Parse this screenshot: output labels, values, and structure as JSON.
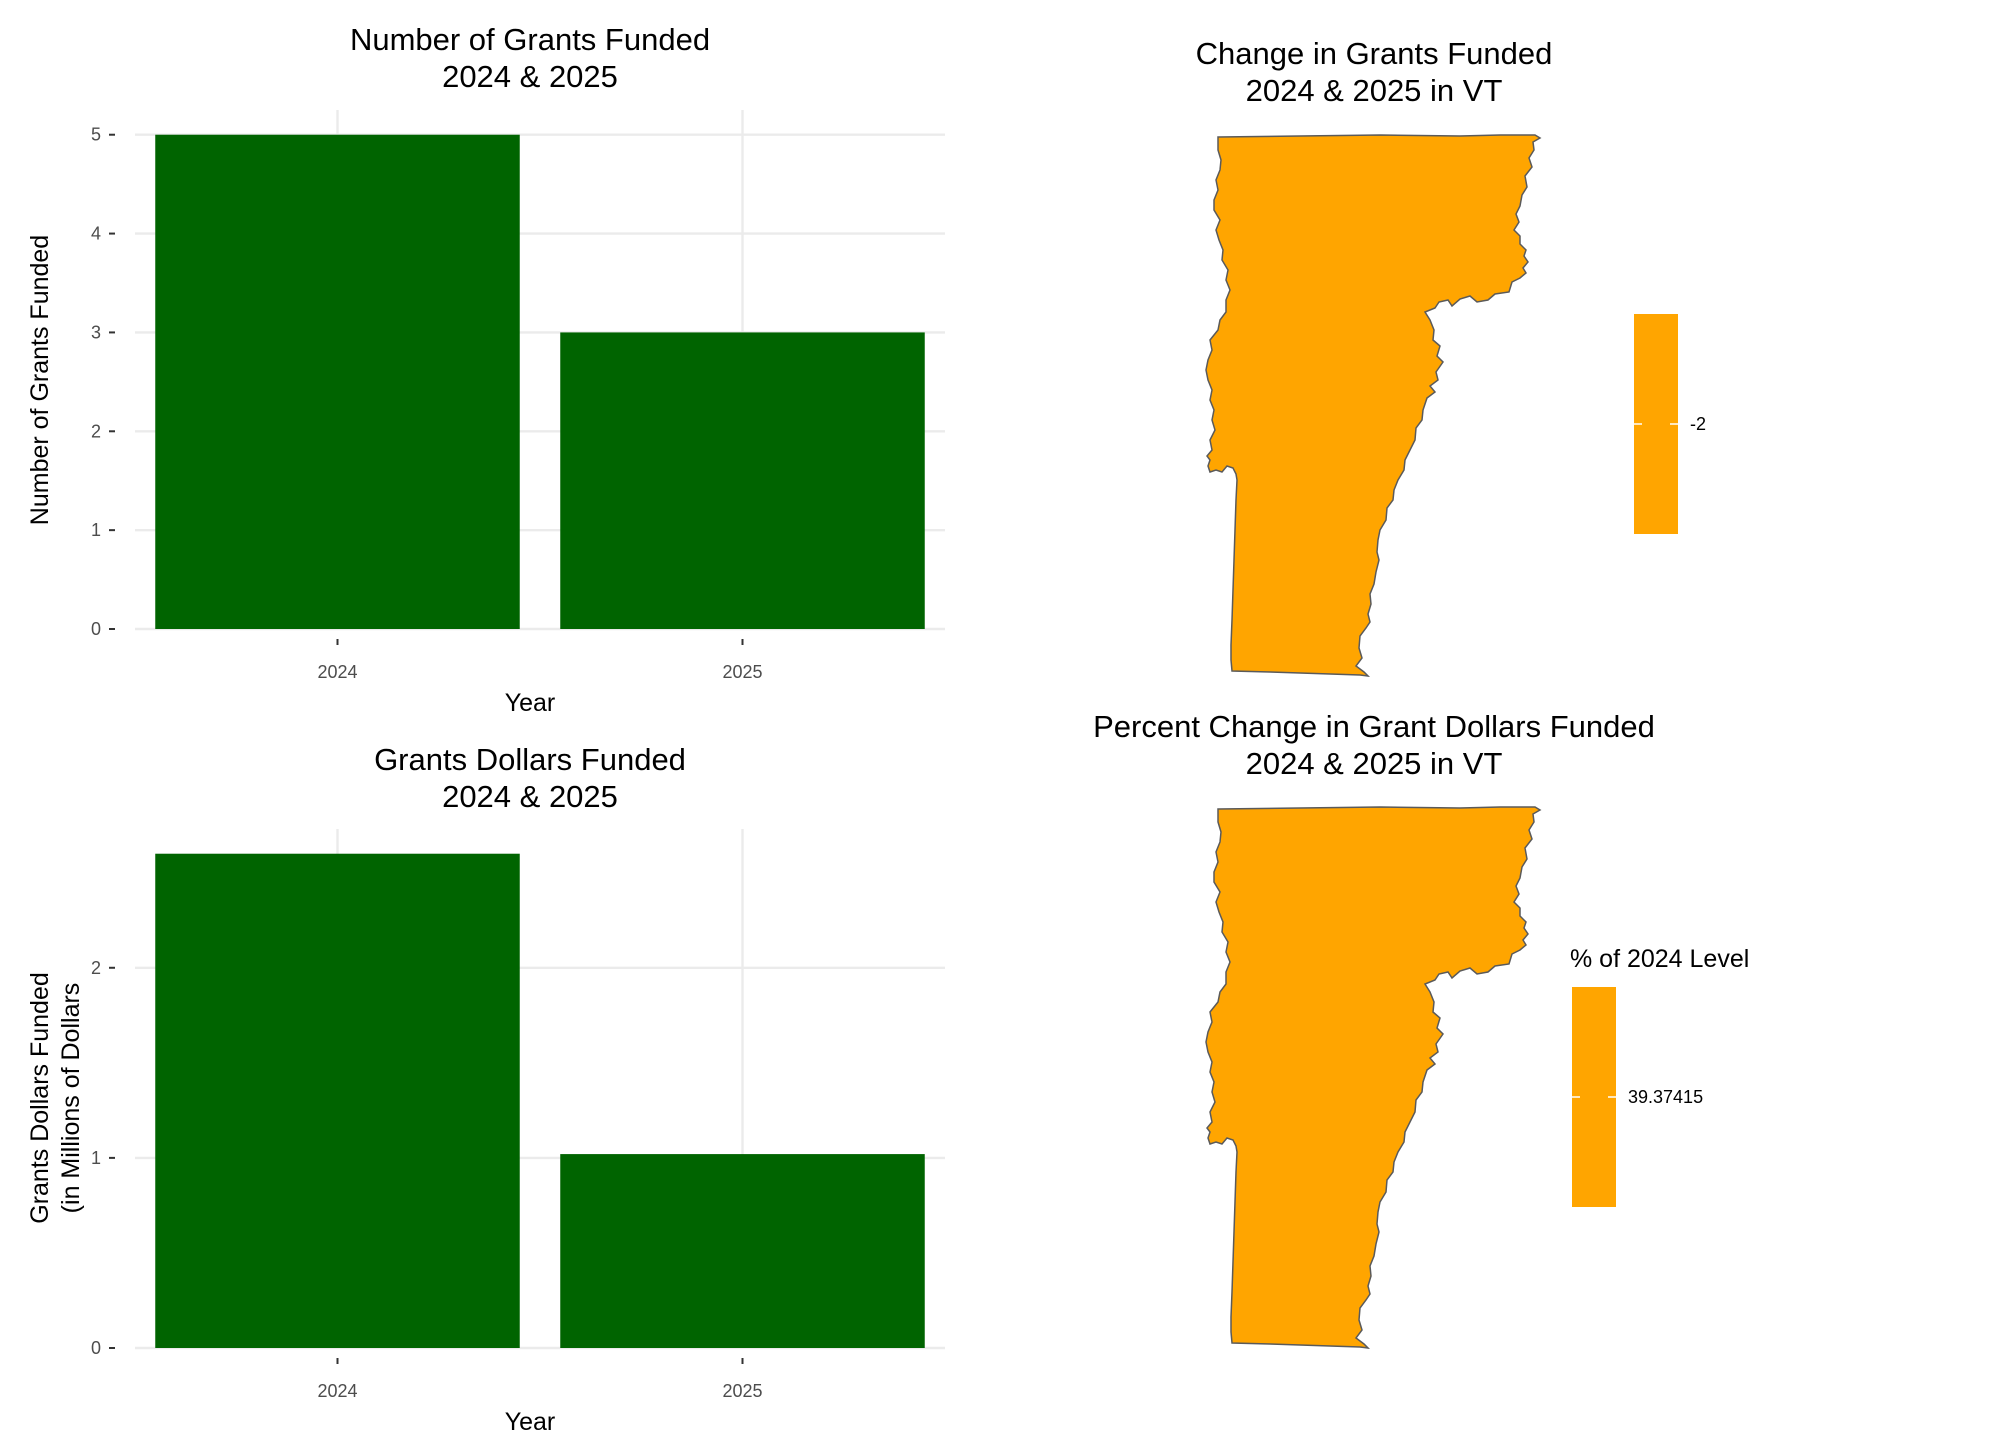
{
  "chart_data": [
    {
      "type": "bar",
      "title": [
        "Number of Grants Funded",
        "2024 & 2025"
      ],
      "xlabel": "Year",
      "ylabel": [
        "Number of Grants Funded"
      ],
      "categories": [
        "2024",
        "2025"
      ],
      "values": [
        5,
        3
      ],
      "ylim": [
        0,
        5.25
      ],
      "yticks": [
        0,
        1,
        2,
        3,
        4,
        5
      ],
      "grid": true,
      "bar_color": "#006400"
    },
    {
      "type": "bar",
      "title": [
        "Grants Dollars Funded",
        "2024 & 2025"
      ],
      "xlabel": "Year",
      "ylabel": [
        "Grants Dollars Funded",
        "(in Millions of Dollars"
      ],
      "categories": [
        "2024",
        "2025"
      ],
      "values": [
        2.6,
        1.02
      ],
      "ylim": [
        0,
        2.73
      ],
      "yticks": [
        0,
        1,
        2
      ],
      "grid": true,
      "bar_color": "#006400"
    },
    {
      "type": "map",
      "title": [
        "Change in Grants Funded",
        "2024 & 2025 in VT"
      ],
      "region": "VT",
      "fill": "#FFA500",
      "legend_title": "",
      "legend_labels": [
        "-2"
      ],
      "value": -2
    },
    {
      "type": "map",
      "title": [
        "Percent Change in Grant Dollars Funded",
        "2024 & 2025 in VT"
      ],
      "region": "VT",
      "fill": "#FFA500",
      "legend_title": "% of 2024 Level",
      "legend_labels": [
        "39.37415"
      ],
      "value": 39.37415
    }
  ]
}
